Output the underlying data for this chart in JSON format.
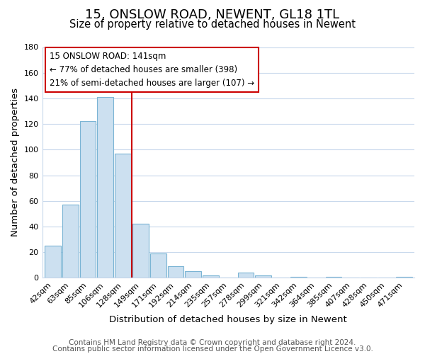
{
  "title": "15, ONSLOW ROAD, NEWENT, GL18 1TL",
  "subtitle": "Size of property relative to detached houses in Newent",
  "xlabel": "Distribution of detached houses by size in Newent",
  "ylabel": "Number of detached properties",
  "categories": [
    "42sqm",
    "63sqm",
    "85sqm",
    "106sqm",
    "128sqm",
    "149sqm",
    "171sqm",
    "192sqm",
    "214sqm",
    "235sqm",
    "257sqm",
    "278sqm",
    "299sqm",
    "321sqm",
    "342sqm",
    "364sqm",
    "385sqm",
    "407sqm",
    "428sqm",
    "450sqm",
    "471sqm"
  ],
  "values": [
    25,
    57,
    122,
    141,
    97,
    42,
    19,
    9,
    5,
    2,
    0,
    4,
    2,
    0,
    1,
    0,
    1,
    0,
    0,
    0,
    1
  ],
  "bar_color": "#cce0f0",
  "bar_edge_color": "#7ab4d4",
  "vline_x": 4.5,
  "vline_color": "#cc0000",
  "ylim": [
    0,
    180
  ],
  "yticks": [
    0,
    20,
    40,
    60,
    80,
    100,
    120,
    140,
    160,
    180
  ],
  "annotation_title": "15 ONSLOW ROAD: 141sqm",
  "annotation_line1": "← 77% of detached houses are smaller (398)",
  "annotation_line2": "21% of semi-detached houses are larger (107) →",
  "annotation_box_edge": "#cc0000",
  "footnote1": "Contains HM Land Registry data © Crown copyright and database right 2024.",
  "footnote2": "Contains public sector information licensed under the Open Government Licence v3.0.",
  "title_fontsize": 13,
  "subtitle_fontsize": 10.5,
  "axis_label_fontsize": 9.5,
  "tick_fontsize": 8,
  "annotation_fontsize": 8.5,
  "footnote_fontsize": 7.5,
  "background_color": "#ffffff",
  "grid_color": "#c8d8ec"
}
